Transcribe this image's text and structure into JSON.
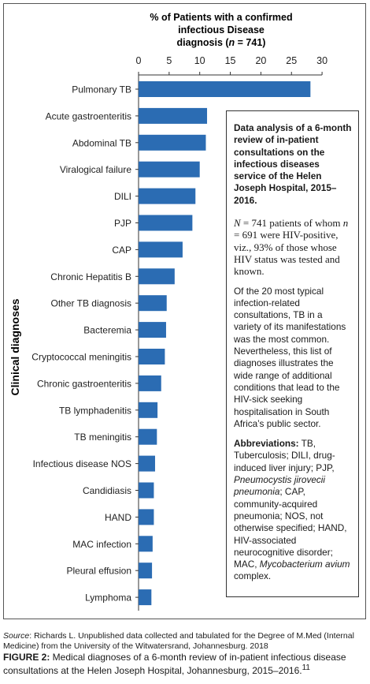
{
  "chart_data": {
    "type": "bar",
    "orientation": "horizontal",
    "title": "% of Patients with a confirmed infectious Disease diagnosis (n = 741)",
    "title_lines": [
      "% of Patients with a confirmed",
      "infectious Disease",
      "diagnosis (",
      "n",
      " = 741)"
    ],
    "xlabel": "% of Patients with a confirmed infectious Disease diagnosis (n = 741)",
    "ylabel": "Clinical diagnoses",
    "xlim": [
      0,
      30
    ],
    "xticks": [
      "0",
      "5",
      "10",
      "15",
      "20",
      "25",
      "30"
    ],
    "bar_color": "#2b6cb3",
    "categories": [
      "Pulmonary TB",
      "Acute gastroenteritis",
      "Abdominal TB",
      "Viralogical failure",
      "DILI",
      "PJP",
      "CAP",
      "Chronic Hepatitis B",
      "Other TB diagnosis",
      "Bacteremia",
      "Cryptococcal meningitis",
      "Chronic gastroenteritis",
      "TB lymphadenitis",
      "TB meningitis",
      "Infectious disease NOS",
      "Candidiasis",
      "HAND",
      "MAC infection",
      "Pleural effusion",
      "Lymphoma"
    ],
    "values": [
      28.1,
      11.2,
      11.0,
      10.0,
      9.3,
      8.8,
      7.2,
      5.9,
      4.6,
      4.5,
      4.3,
      3.7,
      3.1,
      3.0,
      2.7,
      2.5,
      2.5,
      2.3,
      2.2,
      2.1
    ]
  },
  "info": {
    "title": "Data analysis of a 6-month review of in-patient consultations on the infectious diseases service of the Helen Joseph Hospital, 2015–2016.",
    "para1_n": "N",
    "para1_a": " = 741 patients of whom ",
    "para1_n2": "n",
    "para1_b": " = 691 were HIV-positive, viz., 93% of those whose HIV status was tested and known.",
    "para2": "Of the 20 most typical infection-related consultations, TB in a variety of its manifestations was the most common. Nevertheless, this list of diagnoses illustrates the wide range of additional conditions that lead to the HIV-sick seeking hospitalisation in South Africa’s public sector.",
    "abbr_label": "Abbreviations:",
    "abbr_1": " TB, Tuberculosis; DILI, drug-induced liver injury; PJP, ",
    "abbr_pjp": "Pneumocystis jirovecii pneumonia",
    "abbr_2": "; CAP, community-acquired pneumonia; NOS, not otherwise specified; HAND, HIV-associated neurocognitive disorder; MAC, ",
    "abbr_mac": "Mycobacterium avium",
    "abbr_3": " complex."
  },
  "source": {
    "label": "Source",
    "text": ": Richards L. Unpublished data collected and tabulated for the Degree of M.Med (Internal Medicine) from the University of the Witwatersrand, Johannesburg. 2018"
  },
  "caption": {
    "fig": "FIGURE 2:",
    "text": " Medical diagnoses of a 6-month review of in-patient infectious disease consultations at the Helen Joseph Hospital, Johannesburg, 2015–2016.",
    "ref": "11"
  }
}
